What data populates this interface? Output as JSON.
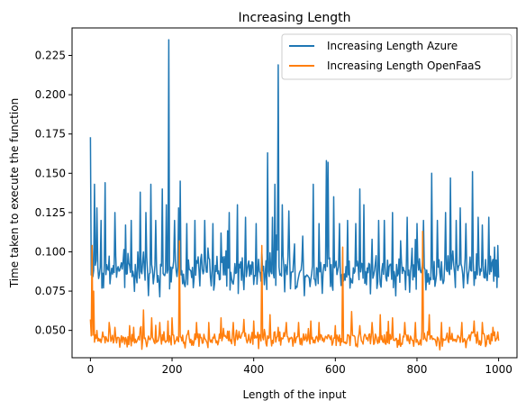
{
  "chart_data": {
    "type": "line",
    "title": "Increasing Length",
    "xlabel": "Length of the input",
    "ylabel": "Time taken to execute the function",
    "xlim": [
      -45,
      1045
    ],
    "ylim": [
      0.0326,
      0.2425
    ],
    "xticks": [
      0,
      200,
      400,
      600,
      800,
      1000
    ],
    "yticks": [
      0.05,
      0.075,
      0.1,
      0.125,
      0.15,
      0.175,
      0.2,
      0.225
    ],
    "ytick_labels": [
      "0.050",
      "0.075",
      "0.100",
      "0.125",
      "0.150",
      "0.175",
      "0.200",
      "0.225"
    ],
    "grid": false,
    "legend_position": "top-right",
    "series": [
      {
        "name": "Increasing Length Azure",
        "color": "#1f77b4",
        "baseline": 0.087,
        "noise": 0.008,
        "peaks": [
          [
            0,
            0.173
          ],
          [
            3,
            0.104
          ],
          [
            10,
            0.143
          ],
          [
            15,
            0.128
          ],
          [
            25,
            0.12
          ],
          [
            35,
            0.144
          ],
          [
            60,
            0.125
          ],
          [
            85,
            0.117
          ],
          [
            100,
            0.12
          ],
          [
            115,
            0.1
          ],
          [
            122,
            0.138
          ],
          [
            135,
            0.125
          ],
          [
            148,
            0.143
          ],
          [
            160,
            0.12
          ],
          [
            175,
            0.14
          ],
          [
            185,
            0.13
          ],
          [
            192,
            0.235
          ],
          [
            205,
            0.12
          ],
          [
            215,
            0.128
          ],
          [
            220,
            0.145
          ],
          [
            235,
            0.118
          ],
          [
            255,
            0.12
          ],
          [
            280,
            0.12
          ],
          [
            300,
            0.118
          ],
          [
            320,
            0.112
          ],
          [
            340,
            0.125
          ],
          [
            360,
            0.13
          ],
          [
            380,
            0.122
          ],
          [
            405,
            0.118
          ],
          [
            420,
            0.1
          ],
          [
            433,
            0.163
          ],
          [
            445,
            0.122
          ],
          [
            452,
            0.143
          ],
          [
            460,
            0.219
          ],
          [
            470,
            0.13
          ],
          [
            485,
            0.126
          ],
          [
            500,
            0.105
          ],
          [
            520,
            0.11
          ],
          [
            545,
            0.143
          ],
          [
            560,
            0.118
          ],
          [
            578,
            0.158
          ],
          [
            582,
            0.157
          ],
          [
            595,
            0.135
          ],
          [
            610,
            0.118
          ],
          [
            630,
            0.12
          ],
          [
            650,
            0.118
          ],
          [
            660,
            0.14
          ],
          [
            670,
            0.13
          ],
          [
            690,
            0.108
          ],
          [
            705,
            0.12
          ],
          [
            720,
            0.12
          ],
          [
            740,
            0.125
          ],
          [
            760,
            0.107
          ],
          [
            775,
            0.122
          ],
          [
            800,
            0.118
          ],
          [
            815,
            0.12
          ],
          [
            835,
            0.15
          ],
          [
            850,
            0.12
          ],
          [
            870,
            0.125
          ],
          [
            882,
            0.147
          ],
          [
            895,
            0.12
          ],
          [
            905,
            0.128
          ],
          [
            920,
            0.118
          ],
          [
            935,
            0.151
          ],
          [
            950,
            0.122
          ],
          [
            960,
            0.117
          ],
          [
            975,
            0.122
          ],
          [
            990,
            0.103
          ],
          [
            998,
            0.104
          ]
        ]
      },
      {
        "name": "Increasing Length OpenFaaS",
        "color": "#ff7f0e",
        "baseline": 0.0445,
        "noise": 0.0035,
        "peaks": [
          [
            0,
            0.057
          ],
          [
            3,
            0.104
          ],
          [
            8,
            0.075
          ],
          [
            15,
            0.05
          ],
          [
            45,
            0.055
          ],
          [
            60,
            0.052
          ],
          [
            95,
            0.053
          ],
          [
            105,
            0.052
          ],
          [
            130,
            0.063
          ],
          [
            150,
            0.058
          ],
          [
            170,
            0.055
          ],
          [
            190,
            0.056
          ],
          [
            200,
            0.058
          ],
          [
            218,
            0.107
          ],
          [
            240,
            0.05
          ],
          [
            260,
            0.055
          ],
          [
            290,
            0.055
          ],
          [
            320,
            0.058
          ],
          [
            350,
            0.055
          ],
          [
            375,
            0.057
          ],
          [
            400,
            0.056
          ],
          [
            420,
            0.104
          ],
          [
            440,
            0.06
          ],
          [
            460,
            0.052
          ],
          [
            480,
            0.055
          ],
          [
            510,
            0.055
          ],
          [
            540,
            0.056
          ],
          [
            560,
            0.055
          ],
          [
            600,
            0.053
          ],
          [
            618,
            0.103
          ],
          [
            640,
            0.062
          ],
          [
            660,
            0.053
          ],
          [
            690,
            0.055
          ],
          [
            710,
            0.06
          ],
          [
            740,
            0.058
          ],
          [
            770,
            0.055
          ],
          [
            795,
            0.055
          ],
          [
            813,
            0.113
          ],
          [
            830,
            0.06
          ],
          [
            860,
            0.055
          ],
          [
            880,
            0.052
          ],
          [
            910,
            0.055
          ],
          [
            940,
            0.056
          ],
          [
            960,
            0.055
          ],
          [
            985,
            0.052
          ],
          [
            998,
            0.049
          ]
        ]
      }
    ]
  }
}
